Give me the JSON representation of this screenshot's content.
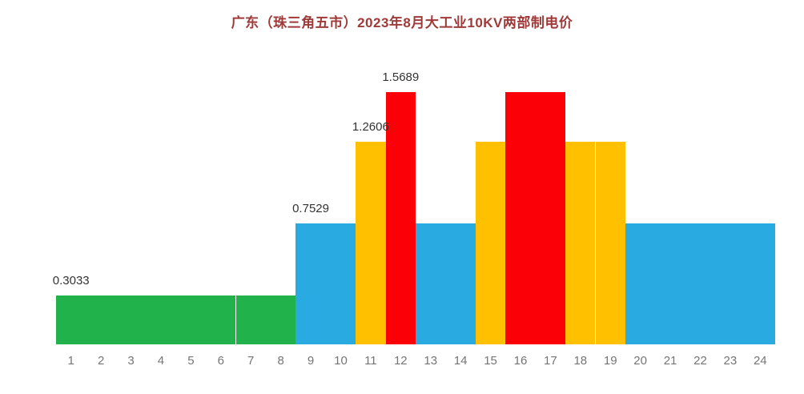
{
  "title": "广东（珠三角五市）2023年8月大工业10KV两部制电价",
  "chart_data": {
    "type": "bar",
    "title": "广东（珠三角五市）2023年8月大工业10KV两部制电价",
    "xlabel": "",
    "ylabel": "",
    "ylim": [
      0,
      1.6
    ],
    "grid": false,
    "legend": "none",
    "categories": [
      1,
      2,
      3,
      4,
      5,
      6,
      7,
      8,
      9,
      10,
      11,
      12,
      13,
      14,
      15,
      16,
      17,
      18,
      19,
      20,
      21,
      22,
      23,
      24
    ],
    "values": [
      0.3033,
      0.3033,
      0.3033,
      0.3033,
      0.3033,
      0.3033,
      0.3033,
      0.3033,
      0.7529,
      0.7529,
      1.2606,
      1.5689,
      0.7529,
      0.7529,
      1.2606,
      1.5689,
      1.5689,
      1.2606,
      1.2606,
      0.7529,
      0.7529,
      0.7529,
      0.7529,
      0.7529
    ],
    "bar_colors": [
      "green",
      "green",
      "green",
      "green",
      "green",
      "green",
      "green",
      "green",
      "blue",
      "blue",
      "yellow",
      "red",
      "blue",
      "blue",
      "yellow",
      "red",
      "red",
      "yellow",
      "yellow",
      "blue",
      "blue",
      "blue",
      "blue",
      "blue"
    ],
    "palette": {
      "green": "#21b24b",
      "blue": "#29abe2",
      "yellow": "#ffc000",
      "red": "#fb0006"
    },
    "annotations": [
      {
        "text": "0.3033",
        "bar": 1
      },
      {
        "text": "0.7529",
        "bar": 9
      },
      {
        "text": "1.2606",
        "bar": 11
      },
      {
        "text": "1.5689",
        "bar": 12
      }
    ],
    "tier_meaning": {
      "green": 0.3033,
      "blue": 0.7529,
      "yellow": 1.2606,
      "red": 1.5689
    }
  }
}
